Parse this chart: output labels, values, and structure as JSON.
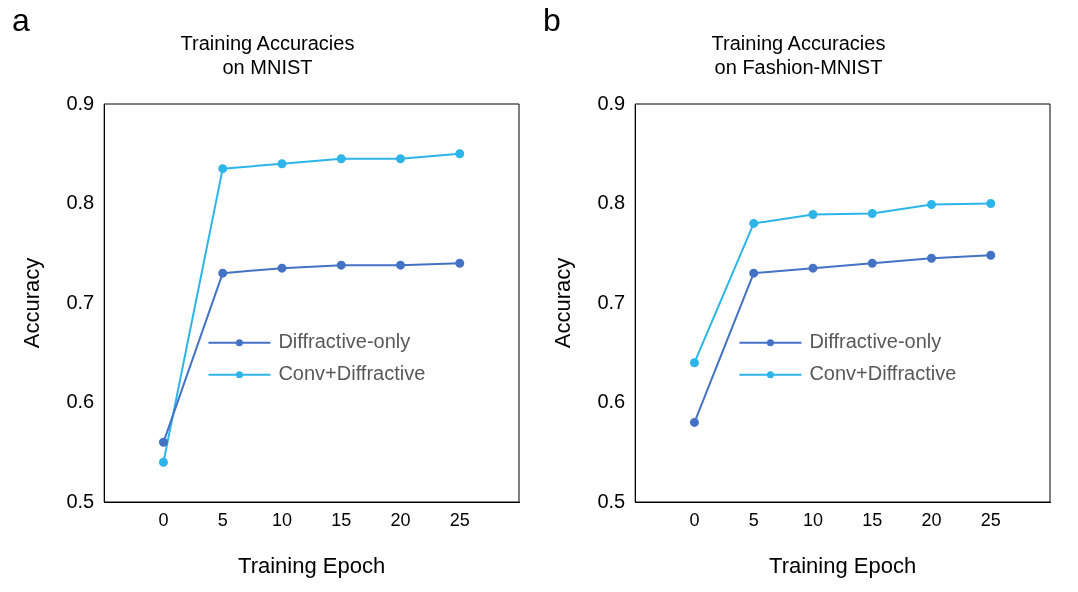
{
  "chart_data": [
    {
      "type": "line",
      "title": "Training Accuracies\non MNIST",
      "annotations": [
        "a"
      ],
      "xlabel": "Training Epoch",
      "ylabel": "Accuracy",
      "x": [
        0,
        5,
        10,
        15,
        20,
        25
      ],
      "xlim": [
        -5,
        30
      ],
      "xticks": [
        0,
        5,
        10,
        15,
        20,
        25
      ],
      "ylim": [
        0.5,
        0.9
      ],
      "yticks": [
        0.5,
        0.6,
        0.7,
        0.8,
        0.9
      ],
      "grid": false,
      "legend": "right",
      "marker": "circle",
      "line_style": "solid",
      "series": [
        {
          "name": "Diffractive-only",
          "color": "#4472c4",
          "values": [
            0.56,
            0.73,
            0.735,
            0.738,
            0.738,
            0.74
          ]
        },
        {
          "name": "Conv+Diffractive",
          "color": "#2db5ea",
          "values": [
            0.54,
            0.835,
            0.84,
            0.845,
            0.845,
            0.85
          ]
        }
      ]
    },
    {
      "type": "line",
      "title": "Training Accuracies\non Fashion-MNIST",
      "annotations": [
        "b"
      ],
      "xlabel": "Training Epoch",
      "ylabel": "Accuracy",
      "x": [
        0,
        5,
        10,
        15,
        20,
        25
      ],
      "xlim": [
        -5,
        30
      ],
      "xticks": [
        0,
        5,
        10,
        15,
        20,
        25
      ],
      "ylim": [
        0.5,
        0.9
      ],
      "yticks": [
        0.5,
        0.6,
        0.7,
        0.8,
        0.9
      ],
      "grid": false,
      "legend": "right",
      "marker": "circle",
      "line_style": "solid",
      "series": [
        {
          "name": "Diffractive-only",
          "color": "#4472c4",
          "values": [
            0.58,
            0.73,
            0.735,
            0.74,
            0.745,
            0.748
          ]
        },
        {
          "name": "Conv+Diffractive",
          "color": "#2db5ea",
          "values": [
            0.64,
            0.78,
            0.789,
            0.79,
            0.799,
            0.8
          ]
        }
      ]
    }
  ]
}
